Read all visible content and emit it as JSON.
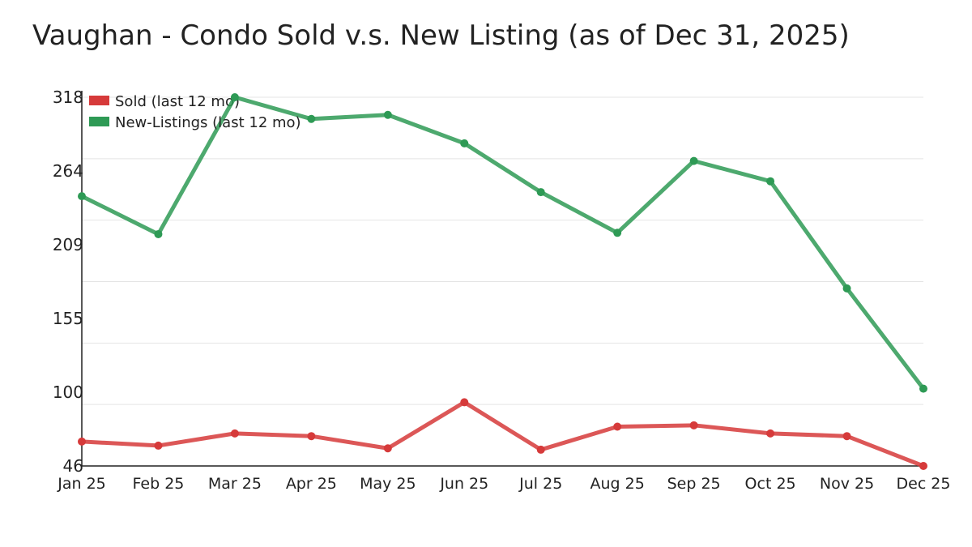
{
  "chart_data": {
    "type": "line",
    "title": "Vaughan - Condo Sold v.s. New Listing (as of Dec 31, 2025)",
    "xlabel": "",
    "ylabel": "",
    "categories": [
      "Jan 25",
      "Feb 25",
      "Mar 25",
      "Apr 25",
      "May 25",
      "Jun 25",
      "Jul 25",
      "Aug 25",
      "Sep 25",
      "Oct 25",
      "Nov 25",
      "Dec 25"
    ],
    "y_ticks": [
      "318",
      "264",
      "209",
      "155",
      "100",
      "46"
    ],
    "ylim": [
      46,
      318
    ],
    "grid": true,
    "legend_position": "top-left",
    "series": [
      {
        "name": "Sold (last 12 mo)",
        "color": "#d63a3a",
        "values": [
          64,
          61,
          70,
          68,
          59,
          93,
          58,
          75,
          76,
          70,
          68,
          46
        ]
      },
      {
        "name": "New-Listings (last 12 mo)",
        "color": "#2e9a55",
        "values": [
          245,
          217,
          318,
          302,
          305,
          284,
          248,
          218,
          271,
          256,
          177,
          103
        ]
      }
    ]
  }
}
